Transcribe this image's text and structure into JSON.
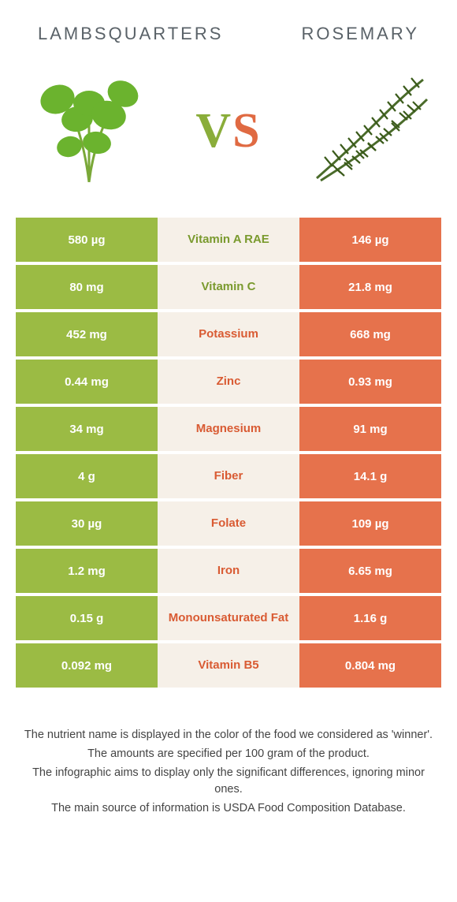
{
  "header": {
    "left": "Lambsquarters",
    "right": "Rosemary"
  },
  "vs": {
    "v": "V",
    "s": "S"
  },
  "colors": {
    "left_bg": "#9bbb44",
    "left_text": "#ffffff",
    "right_bg": "#e6724c",
    "right_text": "#ffffff",
    "mid_bg": "#f6f0e8",
    "winner_left_text": "#7a9a2e",
    "winner_right_text": "#d95b33"
  },
  "rows": [
    {
      "left": "580 µg",
      "label": "Vitamin A RAE",
      "right": "146 µg",
      "winner": "left"
    },
    {
      "left": "80 mg",
      "label": "Vitamin C",
      "right": "21.8 mg",
      "winner": "left"
    },
    {
      "left": "452 mg",
      "label": "Potassium",
      "right": "668 mg",
      "winner": "right"
    },
    {
      "left": "0.44 mg",
      "label": "Zinc",
      "right": "0.93 mg",
      "winner": "right"
    },
    {
      "left": "34 mg",
      "label": "Magnesium",
      "right": "91 mg",
      "winner": "right"
    },
    {
      "left": "4 g",
      "label": "Fiber",
      "right": "14.1 g",
      "winner": "right"
    },
    {
      "left": "30 µg",
      "label": "Folate",
      "right": "109 µg",
      "winner": "right"
    },
    {
      "left": "1.2 mg",
      "label": "Iron",
      "right": "6.65 mg",
      "winner": "right"
    },
    {
      "left": "0.15 g",
      "label": "Monounsaturated Fat",
      "right": "1.16 g",
      "winner": "right"
    },
    {
      "left": "0.092 mg",
      "label": "Vitamin B5",
      "right": "0.804 mg",
      "winner": "right"
    }
  ],
  "footer": {
    "l1": "The nutrient name is displayed in the color of the food we considered as 'winner'.",
    "l2": "The amounts are specified per 100 gram of the product.",
    "l3": "The infographic aims to display only the significant differences, ignoring minor ones.",
    "l4": "The main source of information is USDA Food Composition Database."
  }
}
